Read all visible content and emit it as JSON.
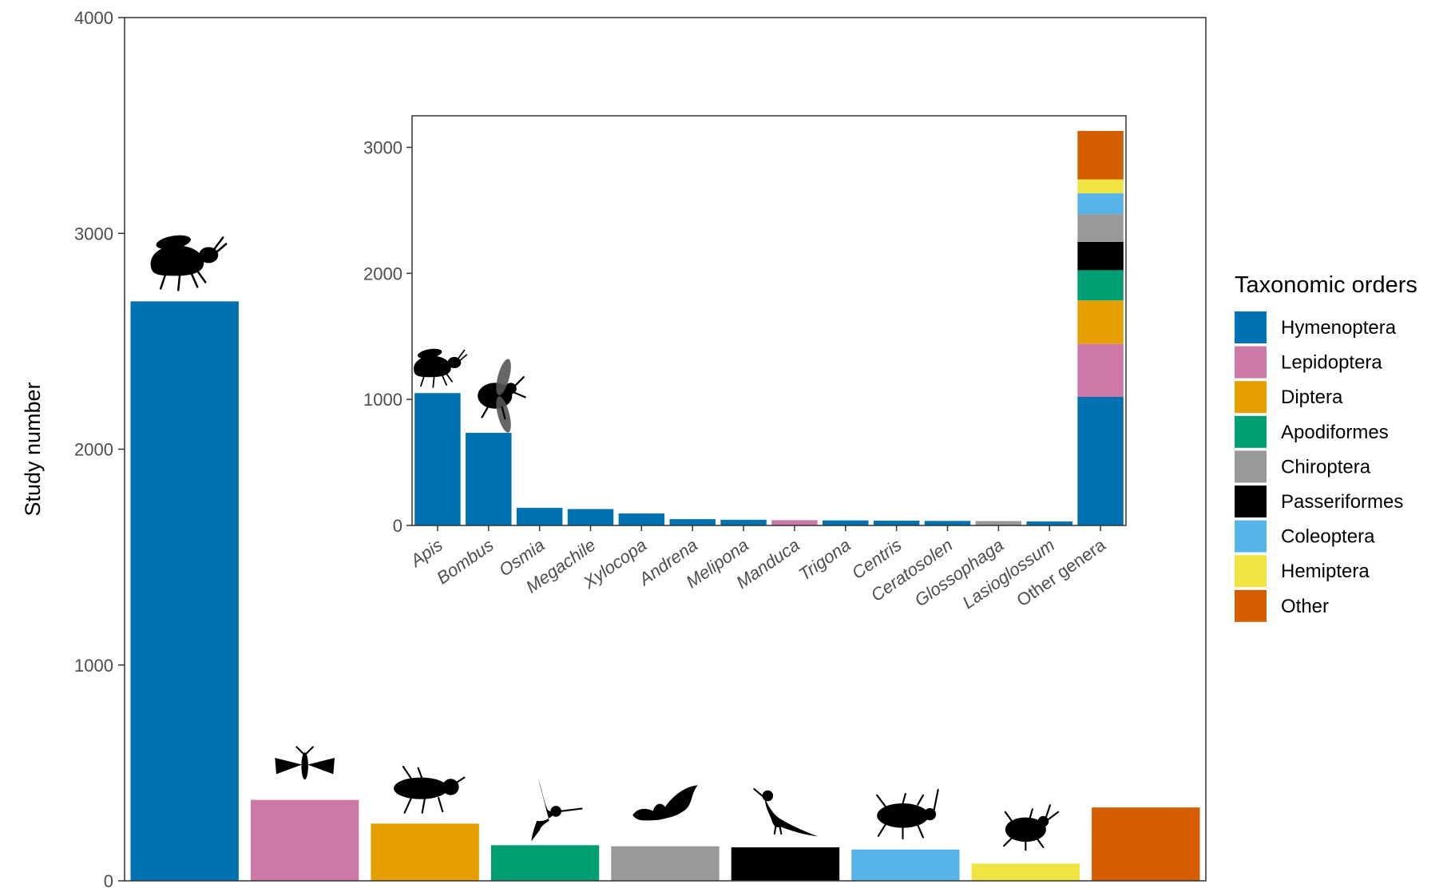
{
  "chart_data": [
    {
      "type": "bar",
      "ylabel": "Study number",
      "ylim": [
        0,
        4000
      ],
      "yticks": [
        0,
        1000,
        2000,
        3000,
        4000
      ],
      "categories": [
        "Hymenoptera",
        "Lepidoptera",
        "Diptera",
        "Apodiformes",
        "Chiroptera",
        "Passeriformes",
        "Coleoptera",
        "Hemiptera",
        "Other"
      ],
      "values": [
        2685,
        375,
        265,
        165,
        160,
        155,
        145,
        80,
        340
      ],
      "colors": [
        "#0072B2",
        "#CC79A7",
        "#E69F00",
        "#009E73",
        "#999999",
        "#000000",
        "#56B4E9",
        "#F0E442",
        "#D55E00"
      ],
      "icons": [
        "bee-icon",
        "moth-icon",
        "fly-icon",
        "hummingbird-icon",
        "bat-icon",
        "songbird-icon",
        "beetle-icon",
        "bug-icon",
        null
      ],
      "grid": false,
      "legend": {
        "title": "Taxonomic orders",
        "placement": "right",
        "entries": [
          "Hymenoptera",
          "Lepidoptera",
          "Diptera",
          "Apodiformes",
          "Chiroptera",
          "Passeriformes",
          "Coleoptera",
          "Hemiptera",
          "Other"
        ]
      }
    },
    {
      "type": "bar",
      "stacked": true,
      "ylim": [
        0,
        3250
      ],
      "yticks": [
        0,
        1000,
        2000,
        3000
      ],
      "categories": [
        "Apis",
        "Bombus",
        "Osmia",
        "Megachile",
        "Xylocopa",
        "Andrena",
        "Melipona",
        "Manduca",
        "Trigona",
        "Centris",
        "Ceratosolen",
        "Glossophaga",
        "Lasioglossum",
        "Other genera"
      ],
      "bars": [
        [
          {
            "order": "Hymenoptera",
            "value": 1050
          }
        ],
        [
          {
            "order": "Hymenoptera",
            "value": 735
          }
        ],
        [
          {
            "order": "Hymenoptera",
            "value": 140
          }
        ],
        [
          {
            "order": "Hymenoptera",
            "value": 130
          }
        ],
        [
          {
            "order": "Hymenoptera",
            "value": 95
          }
        ],
        [
          {
            "order": "Hymenoptera",
            "value": 50
          }
        ],
        [
          {
            "order": "Hymenoptera",
            "value": 45
          }
        ],
        [
          {
            "order": "Lepidoptera",
            "value": 42
          }
        ],
        [
          {
            "order": "Hymenoptera",
            "value": 40
          }
        ],
        [
          {
            "order": "Hymenoptera",
            "value": 38
          }
        ],
        [
          {
            "order": "Hymenoptera",
            "value": 36
          }
        ],
        [
          {
            "order": "Chiroptera",
            "value": 35
          }
        ],
        [
          {
            "order": "Hymenoptera",
            "value": 32
          }
        ],
        [
          {
            "order": "Hymenoptera",
            "value": 1020
          },
          {
            "order": "Lepidoptera",
            "value": 420
          },
          {
            "order": "Diptera",
            "value": 345
          },
          {
            "order": "Apodiformes",
            "value": 240
          },
          {
            "order": "Passeriformes",
            "value": 225
          },
          {
            "order": "Chiroptera",
            "value": 220
          },
          {
            "order": "Coleoptera",
            "value": 165
          },
          {
            "order": "Hemiptera",
            "value": 110
          },
          {
            "order": "Other",
            "value": 385
          }
        ]
      ],
      "icons": [
        "bee-icon",
        "bumblebee-icon"
      ],
      "grid": false
    }
  ],
  "order_colors": {
    "Hymenoptera": "#0072B2",
    "Lepidoptera": "#CC79A7",
    "Diptera": "#E69F00",
    "Apodiformes": "#009E73",
    "Chiroptera": "#999999",
    "Passeriformes": "#000000",
    "Coleoptera": "#56B4E9",
    "Hemiptera": "#F0E442",
    "Other": "#D55E00"
  }
}
